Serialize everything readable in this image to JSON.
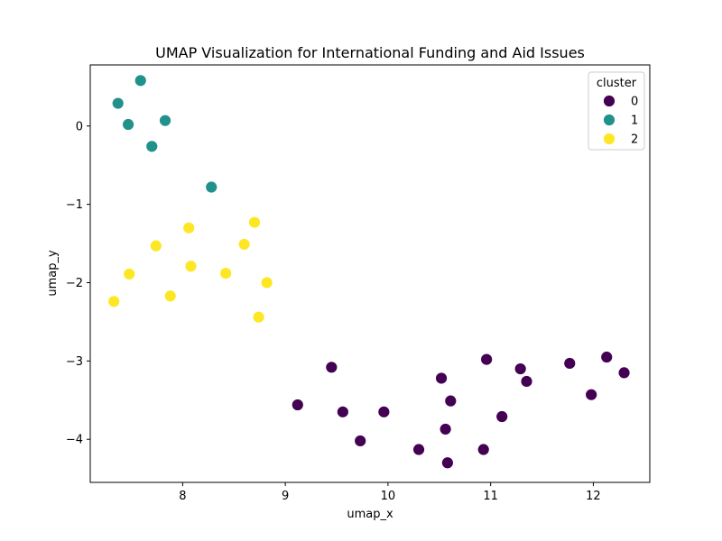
{
  "chart_data": {
    "type": "scatter",
    "title": "UMAP Visualization for International Funding and Aid Issues",
    "xlabel": "umap_x",
    "ylabel": "umap_y",
    "xlim": [
      7.1,
      12.55
    ],
    "ylim": [
      -4.55,
      0.78
    ],
    "xticks": [
      8,
      9,
      10,
      11,
      12
    ],
    "yticks": [
      0,
      -1,
      -2,
      -3,
      -4
    ],
    "xtick_labels": [
      "8",
      "9",
      "10",
      "11",
      "12"
    ],
    "ytick_labels": [
      "0",
      "−1",
      "−2",
      "−3",
      "−4"
    ],
    "grid": false,
    "legend": {
      "title": "cluster",
      "placement": "top-right",
      "entries": [
        "0",
        "1",
        "2"
      ]
    },
    "series": [
      {
        "name": "0",
        "color": "#440154",
        "points": [
          [
            9.12,
            -3.56
          ],
          [
            9.45,
            -3.08
          ],
          [
            9.56,
            -3.65
          ],
          [
            9.73,
            -4.02
          ],
          [
            9.96,
            -3.65
          ],
          [
            10.3,
            -4.13
          ],
          [
            10.52,
            -3.22
          ],
          [
            10.56,
            -3.87
          ],
          [
            10.58,
            -4.3
          ],
          [
            10.61,
            -3.51
          ],
          [
            10.93,
            -4.13
          ],
          [
            10.96,
            -2.98
          ],
          [
            11.11,
            -3.71
          ],
          [
            11.29,
            -3.1
          ],
          [
            11.35,
            -3.26
          ],
          [
            11.77,
            -3.03
          ],
          [
            11.98,
            -3.43
          ],
          [
            12.13,
            -2.95
          ],
          [
            12.3,
            -3.15
          ]
        ]
      },
      {
        "name": "1",
        "color": "#21918c",
        "points": [
          [
            7.37,
            0.29
          ],
          [
            7.47,
            0.02
          ],
          [
            7.59,
            0.58
          ],
          [
            7.7,
            -0.26
          ],
          [
            7.83,
            0.07
          ],
          [
            8.28,
            -0.78
          ]
        ]
      },
      {
        "name": "2",
        "color": "#fde725",
        "points": [
          [
            7.33,
            -2.24
          ],
          [
            7.48,
            -1.89
          ],
          [
            7.74,
            -1.53
          ],
          [
            7.88,
            -2.17
          ],
          [
            8.06,
            -1.3
          ],
          [
            8.08,
            -1.79
          ],
          [
            8.42,
            -1.88
          ],
          [
            8.6,
            -1.51
          ],
          [
            8.7,
            -1.23
          ],
          [
            8.74,
            -2.44
          ],
          [
            8.82,
            -2.0
          ]
        ]
      }
    ]
  }
}
